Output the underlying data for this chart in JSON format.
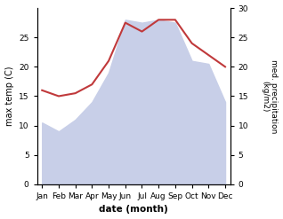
{
  "months": [
    "Jan",
    "Feb",
    "Mar",
    "Apr",
    "May",
    "Jun",
    "Jul",
    "Aug",
    "Sep",
    "Oct",
    "Nov",
    "Dec"
  ],
  "max_temp": [
    10.5,
    9.0,
    11.0,
    14.0,
    19.0,
    28.0,
    27.5,
    28.0,
    27.5,
    21.0,
    20.5,
    14.0
  ],
  "precipitation": [
    16.0,
    15.0,
    15.5,
    17.0,
    21.0,
    27.5,
    26.0,
    28.0,
    28.0,
    24.0,
    22.0,
    20.0
  ],
  "temp_fill_color": "#c8cfe8",
  "precip_color": "#c0393b",
  "xlabel": "date (month)",
  "ylabel_left": "max temp (C)",
  "ylabel_right": "med. precipitation\n(kg/m2)",
  "ylim_left": [
    0,
    30
  ],
  "ylim_right": [
    0,
    30
  ],
  "yticks_left": [
    0,
    5,
    10,
    15,
    20,
    25
  ],
  "yticks_right": [
    0,
    5,
    10,
    15,
    20,
    25,
    30
  ],
  "background_color": "#ffffff",
  "fig_width": 3.18,
  "fig_height": 2.47,
  "dpi": 100
}
